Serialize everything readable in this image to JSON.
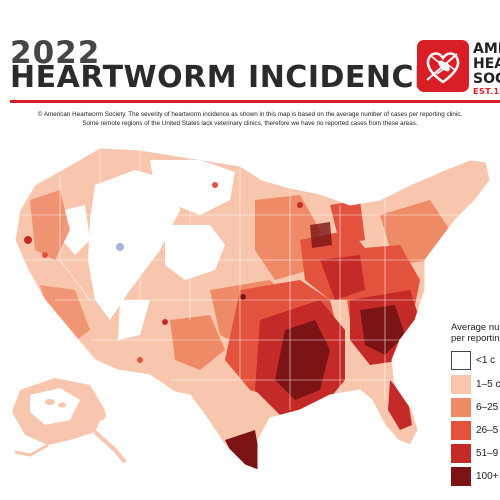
{
  "header": {
    "year": "2022",
    "title": "HEARTWORM INCIDENCE",
    "org_lines": [
      "AMER",
      "HEAR",
      "SOCI"
    ],
    "org_est": "EST.197"
  },
  "note": {
    "line1": "© American Heartworm Society. The severity of heartworm incidence as shown in this map is based on the average number of cases per reporting clinic.",
    "line2": "Some remote regions of the United States lack veterinary clinics, therefore we have no reported cases from these areas."
  },
  "legend": {
    "title_line1": "Average nu",
    "title_line2": "per reportin",
    "items": [
      {
        "label": "<1 c",
        "color": "#ffffff",
        "border": "#444444"
      },
      {
        "label": "1–5 c",
        "color": "#f8c6ac",
        "border": "#f8c6ac"
      },
      {
        "label": "6–25",
        "color": "#ef8a67",
        "border": "#ef8a67"
      },
      {
        "label": "26–5",
        "color": "#e2523c",
        "border": "#e2523c"
      },
      {
        "label": "51–9",
        "color": "#c42a28",
        "border": "#c42a28"
      },
      {
        "label": "100+",
        "color": "#7c1416",
        "border": "#7c1416"
      }
    ]
  },
  "map": {
    "regions": [
      "contiguous-us",
      "alaska",
      "hawaii"
    ],
    "colors": {
      "accent": "#d62128",
      "none": "#ffffff",
      "low": "#f8c6ac",
      "mid": "#ef8a67",
      "high": "#e2523c",
      "very_high": "#c42a28",
      "extreme": "#7c1416",
      "no_data": "#a9b3de"
    }
  }
}
